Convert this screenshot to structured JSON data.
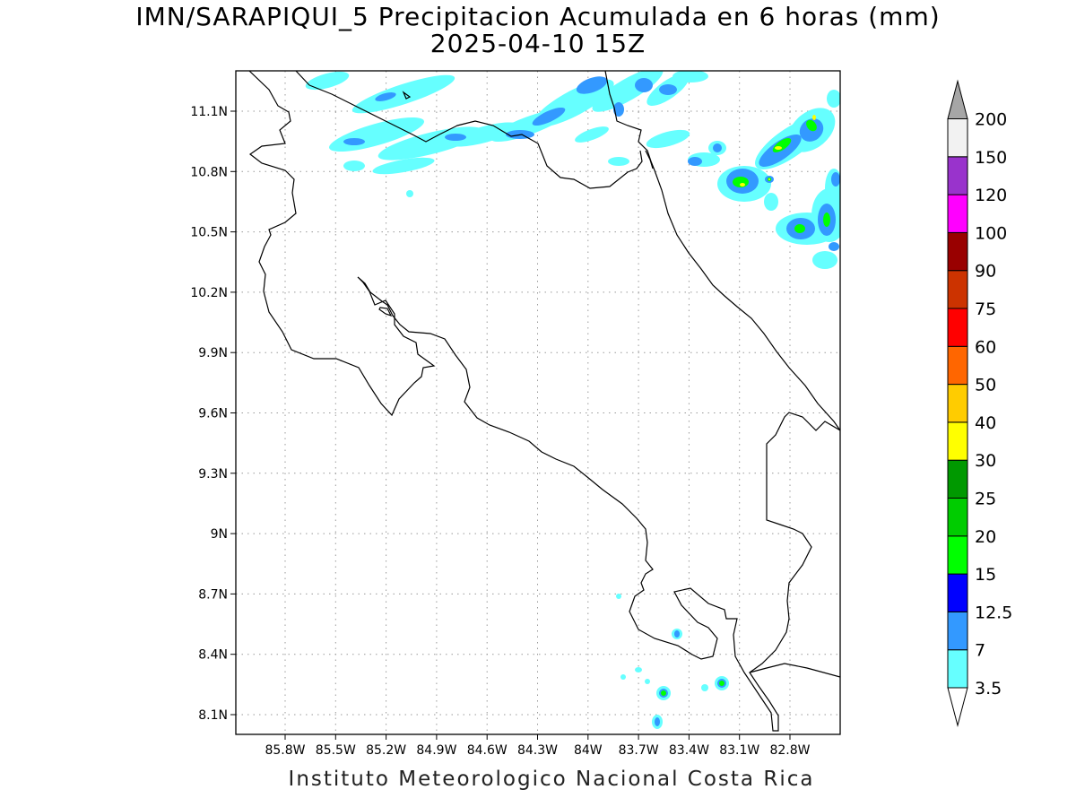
{
  "title": "IMN/SARAPIQUI_5 Precipitacion Acumulada en 6 horas (mm)",
  "subtitle": "2025-04-10 15Z",
  "footer": "Instituto Meteorologico Nacional Costa Rica",
  "map": {
    "lon_range": [
      -86.0,
      -82.6
    ],
    "lat_range": [
      8.0,
      11.3
    ],
    "lon_ticks": [
      "85.8W",
      "85.5W",
      "85.2W",
      "84.9W",
      "84.6W",
      "84.3W",
      "84W",
      "83.7W",
      "83.4W",
      "83.1W",
      "82.8W"
    ],
    "lat_ticks": [
      "11.1N",
      "10.8N",
      "10.5N",
      "10.2N",
      "9.9N",
      "9.6N",
      "9.3N",
      "9N",
      "8.7N",
      "8.4N",
      "8.1N"
    ],
    "grid": "dotted"
  },
  "colorbar": {
    "labels": [
      "3.5",
      "7",
      "12.5",
      "15",
      "20",
      "25",
      "30",
      "40",
      "50",
      "60",
      "75",
      "90",
      "100",
      "120",
      "150",
      "200"
    ],
    "colors": [
      "#ffffff",
      "#66ffff",
      "#3399ff",
      "#0000ff",
      "#00ff00",
      "#00cc00",
      "#009900",
      "#ffff00",
      "#ffcc00",
      "#ff6600",
      "#ff0000",
      "#cc3300",
      "#990000",
      "#ff00ff",
      "#9933cc",
      "#f2f2f2",
      "#a6a6a6"
    ]
  }
}
